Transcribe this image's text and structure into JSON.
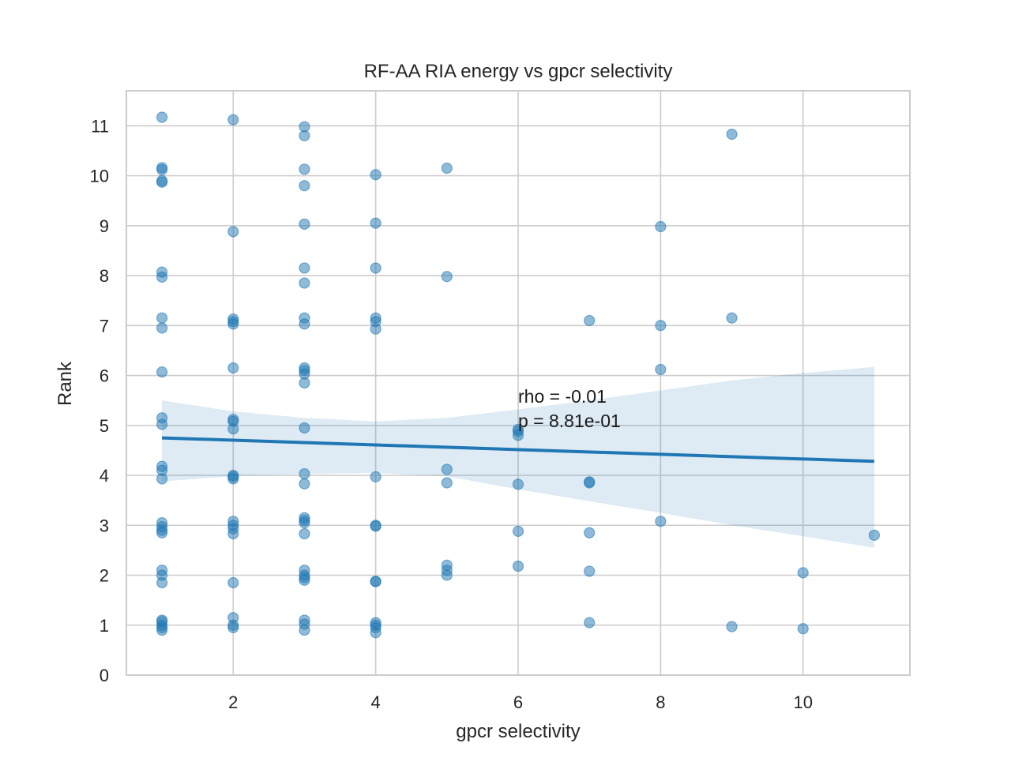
{
  "chart_data": {
    "type": "scatter",
    "title": "RF-AA RIA energy vs gpcr selectivity",
    "xlabel": "gpcr selectivity",
    "ylabel": "Rank",
    "xlim": [
      0.5,
      11.5
    ],
    "ylim": [
      0,
      11.7
    ],
    "x_ticks": [
      2,
      4,
      6,
      8,
      10
    ],
    "y_ticks": [
      0,
      1,
      2,
      3,
      4,
      5,
      6,
      7,
      8,
      9,
      10,
      11
    ],
    "grid": true,
    "colors": {
      "points": "#1f77b4",
      "line": "#1f77b4",
      "band": "#1f77b4",
      "grid": "#cccccc",
      "axes": "#cccccc"
    },
    "annotations": [
      "rho = -0.01",
      "p = 8.81e-01"
    ],
    "annotation_position": [
      6,
      5.5
    ],
    "points": [
      [
        1,
        11.17
      ],
      [
        1,
        10.16
      ],
      [
        1,
        10.12
      ],
      [
        1,
        9.9
      ],
      [
        1,
        9.87
      ],
      [
        1,
        8.07
      ],
      [
        1,
        7.97
      ],
      [
        1,
        7.15
      ],
      [
        1,
        6.95
      ],
      [
        1,
        6.07
      ],
      [
        1,
        5.15
      ],
      [
        1,
        5.02
      ],
      [
        1,
        4.18
      ],
      [
        1,
        4.1
      ],
      [
        1,
        3.93
      ],
      [
        1,
        3.05
      ],
      [
        1,
        2.97
      ],
      [
        1,
        2.9
      ],
      [
        1,
        2.85
      ],
      [
        1,
        2.1
      ],
      [
        1,
        2.0
      ],
      [
        1,
        1.85
      ],
      [
        1,
        1.1
      ],
      [
        1,
        1.07
      ],
      [
        1,
        1.0
      ],
      [
        1,
        0.95
      ],
      [
        1,
        0.9
      ],
      [
        2,
        11.12
      ],
      [
        2,
        8.88
      ],
      [
        2,
        7.13
      ],
      [
        2,
        7.08
      ],
      [
        2,
        7.03
      ],
      [
        2,
        6.15
      ],
      [
        2,
        5.12
      ],
      [
        2,
        5.08
      ],
      [
        2,
        4.93
      ],
      [
        2,
        4.0
      ],
      [
        2,
        3.97
      ],
      [
        2,
        3.93
      ],
      [
        2,
        3.08
      ],
      [
        2,
        3.0
      ],
      [
        2,
        2.93
      ],
      [
        2,
        2.83
      ],
      [
        2,
        1.85
      ],
      [
        2,
        1.15
      ],
      [
        2,
        1.0
      ],
      [
        2,
        0.95
      ],
      [
        3,
        10.98
      ],
      [
        3,
        10.8
      ],
      [
        3,
        10.13
      ],
      [
        3,
        9.8
      ],
      [
        3,
        9.03
      ],
      [
        3,
        8.15
      ],
      [
        3,
        7.85
      ],
      [
        3,
        7.15
      ],
      [
        3,
        7.03
      ],
      [
        3,
        6.15
      ],
      [
        3,
        6.1
      ],
      [
        3,
        6.03
      ],
      [
        3,
        5.85
      ],
      [
        3,
        4.95
      ],
      [
        3,
        4.03
      ],
      [
        3,
        3.83
      ],
      [
        3,
        3.15
      ],
      [
        3,
        3.1
      ],
      [
        3,
        3.05
      ],
      [
        3,
        2.83
      ],
      [
        3,
        2.1
      ],
      [
        3,
        2.0
      ],
      [
        3,
        1.95
      ],
      [
        3,
        1.9
      ],
      [
        3,
        1.1
      ],
      [
        3,
        1.02
      ],
      [
        3,
        0.9
      ],
      [
        4,
        10.02
      ],
      [
        4,
        9.05
      ],
      [
        4,
        8.15
      ],
      [
        4,
        7.15
      ],
      [
        4,
        7.08
      ],
      [
        4,
        6.93
      ],
      [
        4,
        3.97
      ],
      [
        4,
        3.0
      ],
      [
        4,
        2.98
      ],
      [
        4,
        1.88
      ],
      [
        4,
        1.87
      ],
      [
        4,
        1.05
      ],
      [
        4,
        1.0
      ],
      [
        4,
        0.95
      ],
      [
        4,
        0.85
      ],
      [
        5,
        10.15
      ],
      [
        5,
        7.98
      ],
      [
        5,
        4.12
      ],
      [
        5,
        3.85
      ],
      [
        5,
        2.2
      ],
      [
        5,
        2.1
      ],
      [
        5,
        2.0
      ],
      [
        6,
        4.92
      ],
      [
        6,
        4.88
      ],
      [
        6,
        4.8
      ],
      [
        6,
        3.82
      ],
      [
        6,
        2.88
      ],
      [
        6,
        2.18
      ],
      [
        7,
        7.1
      ],
      [
        7,
        3.87
      ],
      [
        7,
        3.85
      ],
      [
        7,
        2.85
      ],
      [
        7,
        2.08
      ],
      [
        7,
        1.05
      ],
      [
        8,
        8.98
      ],
      [
        8,
        7.0
      ],
      [
        8,
        6.12
      ],
      [
        8,
        3.08
      ],
      [
        9,
        10.83
      ],
      [
        9,
        7.15
      ],
      [
        9,
        0.97
      ],
      [
        10,
        2.05
      ],
      [
        10,
        0.93
      ],
      [
        11,
        2.8
      ]
    ],
    "regression": {
      "x": [
        1,
        11
      ],
      "y": [
        4.75,
        4.28
      ]
    },
    "ci_band": {
      "x": [
        1,
        2,
        3,
        4,
        5,
        6,
        7,
        8,
        9,
        10,
        11
      ],
      "upper": [
        5.5,
        5.28,
        5.15,
        5.08,
        5.15,
        5.32,
        5.5,
        5.7,
        5.9,
        6.05,
        6.17
      ],
      "lower": [
        3.88,
        3.98,
        4.03,
        4.05,
        3.98,
        3.72,
        3.48,
        3.25,
        3.0,
        2.78,
        2.55
      ]
    }
  }
}
